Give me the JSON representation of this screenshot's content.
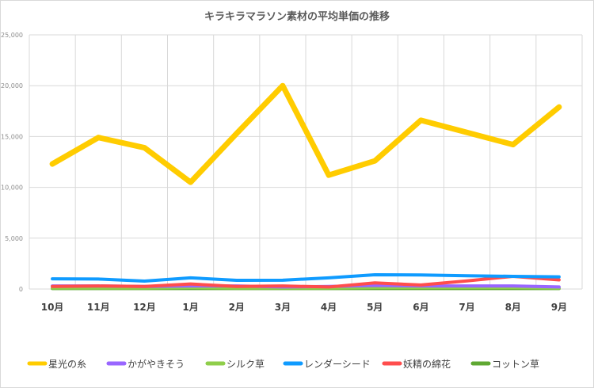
{
  "chart_data": {
    "type": "line",
    "title": "キラキラマラソン素材の平均単価の推移",
    "xlabel": "",
    "ylabel": "",
    "categories": [
      "10月",
      "11月",
      "12月",
      "1月",
      "2月",
      "3月",
      "4月",
      "5月",
      "6月",
      "7月",
      "8月",
      "9月"
    ],
    "ylim": [
      0,
      25000
    ],
    "yticks": [
      "0",
      "5,000",
      "10,000",
      "15,000",
      "20,000",
      "25,000"
    ],
    "grid": true,
    "legend": "bottom",
    "series": [
      {
        "name": "星光の糸",
        "color": "#ffcc00",
        "values": [
          12300,
          14900,
          13900,
          10500,
          15300,
          20000,
          11200,
          12600,
          16600,
          15400,
          14200,
          17900
        ]
      },
      {
        "name": "かがやきそう",
        "color": "#9966ff",
        "values": [
          300,
          300,
          250,
          300,
          300,
          200,
          250,
          350,
          300,
          300,
          300,
          200
        ]
      },
      {
        "name": "シルク草",
        "color": "#8fce4a",
        "values": [
          100,
          100,
          100,
          150,
          100,
          100,
          100,
          150,
          150,
          150,
          150,
          100
        ]
      },
      {
        "name": "レンダーシード",
        "color": "#0f9bff",
        "values": [
          1000,
          980,
          780,
          1100,
          860,
          870,
          1100,
          1400,
          1380,
          1300,
          1250,
          1200
        ]
      },
      {
        "name": "妖精の綿花",
        "color": "#ff4d4d",
        "values": [
          250,
          300,
          250,
          500,
          250,
          300,
          200,
          600,
          400,
          800,
          1250,
          900
        ]
      },
      {
        "name": "コットン草",
        "color": "#5fa832",
        "values": [
          50,
          50,
          50,
          50,
          50,
          50,
          50,
          50,
          50,
          50,
          50,
          50
        ]
      }
    ]
  }
}
